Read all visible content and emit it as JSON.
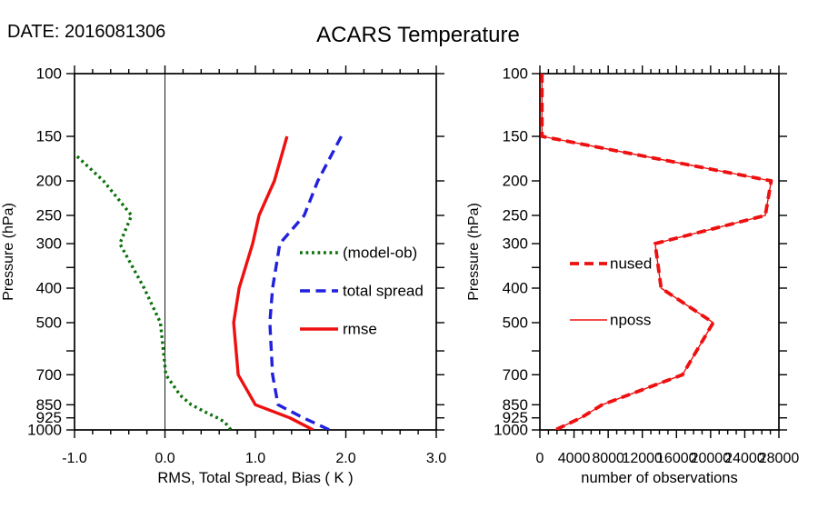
{
  "header": {
    "date_label": "DATE: 2016081306",
    "title": "ACARS Temperature"
  },
  "colors": {
    "bias_green": "#0a700a",
    "spread_blue": "#2121dd",
    "rmse_red": "#ee1010",
    "obs_red": "#ee1010",
    "axis_black": "#000000"
  },
  "chart_data": [
    {
      "type": "line",
      "panel": "left",
      "xlabel": "RMS, Total Spread, Bias ( K )",
      "ylabel": "Pressure (hPa)",
      "xlim": [
        -1.0,
        3.0
      ],
      "x_minor_step": 0.2,
      "xticks": [
        {
          "v": -1.0,
          "label": "-1.0"
        },
        {
          "v": 0.0,
          "label": "0.0"
        },
        {
          "v": 1.0,
          "label": "1.0"
        },
        {
          "v": 2.0,
          "label": "2.0"
        },
        {
          "v": 3.0,
          "label": "3.0"
        }
      ],
      "yscale": "log",
      "ylim": [
        100,
        1000
      ],
      "yticks": [
        {
          "v": 100,
          "label": "100"
        },
        {
          "v": 150,
          "label": "150"
        },
        {
          "v": 200,
          "label": "200"
        },
        {
          "v": 250,
          "label": "250"
        },
        {
          "v": 300,
          "label": "300"
        },
        {
          "v": 350,
          "label": ""
        },
        {
          "v": 400,
          "label": "400"
        },
        {
          "v": 500,
          "label": "500"
        },
        {
          "v": 600,
          "label": ""
        },
        {
          "v": 700,
          "label": "700"
        },
        {
          "v": 850,
          "label": "850"
        },
        {
          "v": 925,
          "label": "925"
        },
        {
          "v": 1000,
          "label": "1000"
        }
      ],
      "zero_line_x": 0.0,
      "grid": false,
      "legend": {
        "position": "inside-right",
        "items": [
          "(model-ob)",
          "total spread",
          "rmse"
        ]
      },
      "series": [
        {
          "name": "(model-ob)",
          "color": "#0a700a",
          "style": "dotted",
          "points": [
            [
              150,
              -1.21
            ],
            [
              200,
              -0.68
            ],
            [
              250,
              -0.37
            ],
            [
              300,
              -0.5
            ],
            [
              400,
              -0.23
            ],
            [
              500,
              -0.05
            ],
            [
              700,
              0.01
            ],
            [
              800,
              0.17
            ],
            [
              850,
              0.29
            ],
            [
              900,
              0.48
            ],
            [
              925,
              0.58
            ],
            [
              950,
              0.66
            ],
            [
              1000,
              0.73
            ]
          ]
        },
        {
          "name": "total spread",
          "color": "#2121dd",
          "style": "dashed",
          "points": [
            [
              150,
              1.95
            ],
            [
              200,
              1.69
            ],
            [
              250,
              1.54
            ],
            [
              300,
              1.27
            ],
            [
              400,
              1.19
            ],
            [
              500,
              1.16
            ],
            [
              700,
              1.19
            ],
            [
              850,
              1.25
            ],
            [
              925,
              1.53
            ],
            [
              1000,
              1.82
            ]
          ]
        },
        {
          "name": "rmse",
          "color": "#ee1010",
          "style": "solid",
          "points": [
            [
              150,
              1.35
            ],
            [
              200,
              1.21
            ],
            [
              250,
              1.04
            ],
            [
              300,
              0.97
            ],
            [
              400,
              0.82
            ],
            [
              500,
              0.76
            ],
            [
              700,
              0.81
            ],
            [
              850,
              1.0
            ],
            [
              925,
              1.38
            ],
            [
              950,
              1.47
            ],
            [
              1000,
              1.64
            ]
          ]
        }
      ]
    },
    {
      "type": "line",
      "panel": "right",
      "xlabel": "number of observations",
      "ylabel": "Pressure (hPa)",
      "xlim": [
        0,
        28000
      ],
      "x_minor_step": 1000,
      "xticks": [
        {
          "v": 0,
          "label": "0"
        },
        {
          "v": 4000,
          "label": "4000"
        },
        {
          "v": 8000,
          "label": "8000"
        },
        {
          "v": 12000,
          "label": "12000"
        },
        {
          "v": 16000,
          "label": "16000"
        },
        {
          "v": 20000,
          "label": "20000"
        },
        {
          "v": 24000,
          "label": "24000"
        },
        {
          "v": 28000,
          "label": "28000"
        }
      ],
      "yscale": "log",
      "ylim": [
        100,
        1000
      ],
      "yticks": [
        {
          "v": 100,
          "label": "100"
        },
        {
          "v": 150,
          "label": "150"
        },
        {
          "v": 200,
          "label": "200"
        },
        {
          "v": 250,
          "label": "250"
        },
        {
          "v": 300,
          "label": "300"
        },
        {
          "v": 350,
          "label": ""
        },
        {
          "v": 400,
          "label": "400"
        },
        {
          "v": 500,
          "label": "500"
        },
        {
          "v": 600,
          "label": ""
        },
        {
          "v": 700,
          "label": "700"
        },
        {
          "v": 850,
          "label": "850"
        },
        {
          "v": 925,
          "label": "925"
        },
        {
          "v": 1000,
          "label": "1000"
        }
      ],
      "grid": false,
      "legend": {
        "position": "inside-left",
        "items": [
          "nused",
          "nposs"
        ]
      },
      "series": [
        {
          "name": "nposs",
          "color": "#ee1010",
          "style": "solid_thin",
          "points": [
            [
              100,
              250
            ],
            [
              150,
              250
            ],
            [
              200,
              27100
            ],
            [
              250,
              26400
            ],
            [
              300,
              13500
            ],
            [
              400,
              14200
            ],
            [
              500,
              20300
            ],
            [
              700,
              16700
            ],
            [
              850,
              7300
            ],
            [
              925,
              4800
            ],
            [
              1000,
              1800
            ]
          ]
        },
        {
          "name": "nused",
          "color": "#ee1010",
          "style": "dashed_thick",
          "points": [
            [
              100,
              250
            ],
            [
              150,
              250
            ],
            [
              200,
              27100
            ],
            [
              250,
              26400
            ],
            [
              300,
              13500
            ],
            [
              400,
              14200
            ],
            [
              500,
              20300
            ],
            [
              700,
              16700
            ],
            [
              850,
              7300
            ],
            [
              925,
              4800
            ],
            [
              1000,
              1800
            ]
          ]
        }
      ]
    }
  ]
}
